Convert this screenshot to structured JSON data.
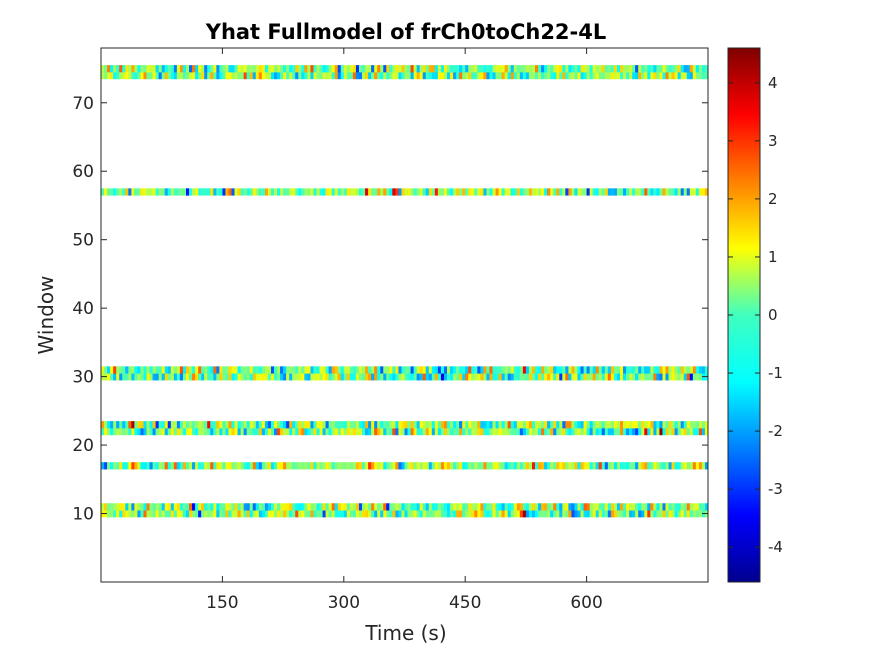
{
  "chart_data": {
    "type": "heatmap",
    "title": "Yhat Fullmodel of frCh0toCh22-4L",
    "xlabel": "Time (s)",
    "ylabel": "Window",
    "xlim": [
      0,
      750
    ],
    "ylim": [
      0,
      78
    ],
    "xticks": [
      150,
      300,
      450,
      600
    ],
    "xtick_labels": [
      "150",
      "300",
      "450",
      "600"
    ],
    "yticks": [
      10,
      20,
      30,
      40,
      50,
      60,
      70
    ],
    "ytick_labels": [
      "10",
      "20",
      "30",
      "40",
      "50",
      "60",
      "70"
    ],
    "colormap": "jet",
    "clim": [
      -4.6,
      4.6
    ],
    "colorbar_ticks": [
      -4,
      -3,
      -2,
      -1,
      0,
      1,
      2,
      3,
      4
    ],
    "colorbar_tick_labels": [
      "-4",
      "-3",
      "-2",
      "-1",
      "0",
      "1",
      "2",
      "3",
      "4"
    ],
    "grid": false,
    "populated_windows": [
      10,
      11,
      17,
      22,
      23,
      30,
      31,
      57,
      74,
      75
    ],
    "value_range_observed": [
      -3.5,
      3.0
    ],
    "note_cells": "Cell values in populated window rows vary roughly between -2 and 2 (mostly cyan-yellow), with occasional extremes; other windows are empty (white)."
  }
}
